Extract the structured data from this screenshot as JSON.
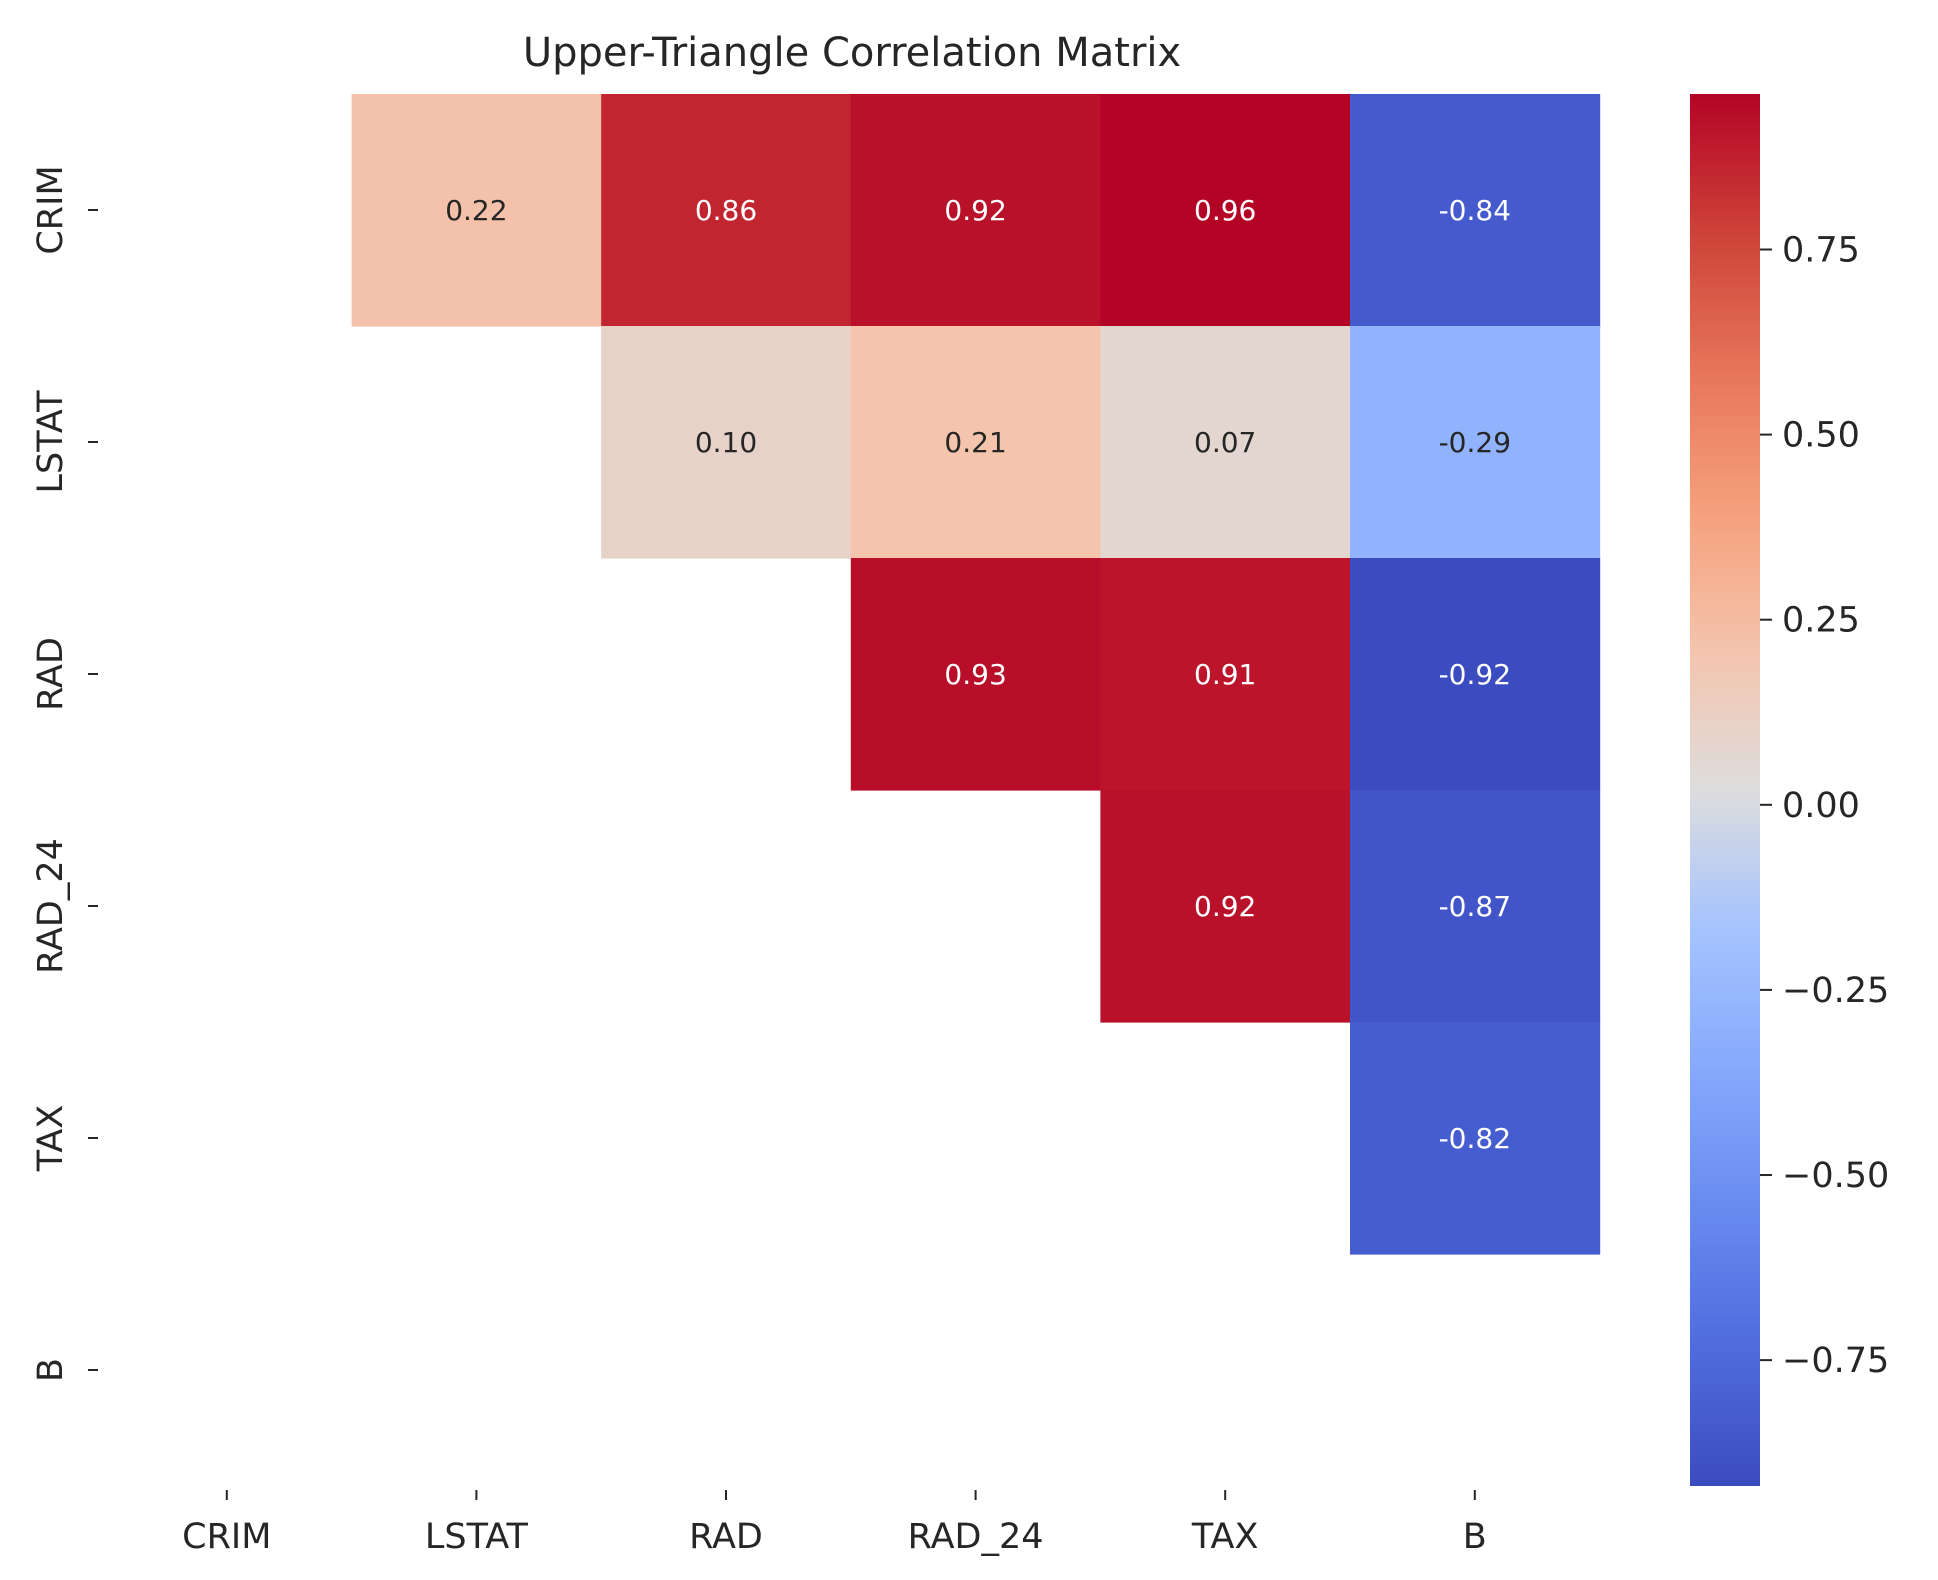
{
  "chart_data": {
    "type": "heatmap",
    "title": "Upper-Triangle Correlation Matrix",
    "variables": [
      "CRIM",
      "LSTAT",
      "RAD",
      "RAD_24",
      "TAX",
      "B"
    ],
    "matrix": [
      [
        null,
        0.22,
        0.86,
        0.92,
        0.96,
        -0.84
      ],
      [
        null,
        null,
        0.1,
        0.21,
        0.07,
        -0.29
      ],
      [
        null,
        null,
        null,
        0.93,
        0.91,
        -0.92
      ],
      [
        null,
        null,
        null,
        null,
        0.92,
        -0.87
      ],
      [
        null,
        null,
        null,
        null,
        null,
        -0.82
      ],
      [
        null,
        null,
        null,
        null,
        null,
        null
      ]
    ],
    "cell_labels": [
      [
        "",
        "0.22",
        "0.86",
        "0.92",
        "0.96",
        "-0.84"
      ],
      [
        "",
        "",
        "0.10",
        "0.21",
        "0.07",
        "-0.29"
      ],
      [
        "",
        "",
        "",
        "0.93",
        "0.91",
        "-0.92"
      ],
      [
        "",
        "",
        "",
        "",
        "0.92",
        "-0.87"
      ],
      [
        "",
        "",
        "",
        "",
        "",
        "-0.82"
      ],
      [
        "",
        "",
        "",
        "",
        "",
        ""
      ]
    ],
    "mask": "lower-triangle-and-diagonal",
    "colormap": "coolwarm",
    "color_range": [
      -0.92,
      0.96
    ],
    "colorbar_ticks": [
      0.75,
      0.5,
      0.25,
      0.0,
      -0.25,
      -0.5,
      -0.75
    ],
    "colorbar_tick_labels": [
      "0.75",
      "0.50",
      "0.25",
      "0.00",
      "−0.25",
      "−0.50",
      "−0.75"
    ],
    "colorbar_placement": "right",
    "grid": false
  }
}
